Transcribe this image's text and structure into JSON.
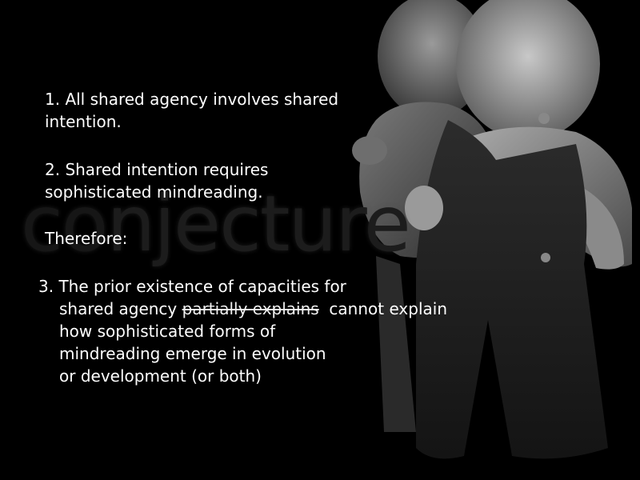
{
  "watermark": {
    "prefix": "co",
    "word": "njecture"
  },
  "points": {
    "p1": {
      "line1": "1. All shared agency involves shared",
      "line2": "intention."
    },
    "p2": {
      "line1": "2. Shared intention requires",
      "line2": "sophisticated mindreading."
    },
    "therefore": "Therefore:",
    "p3": {
      "line1": "3. The prior existence of capacities for",
      "line2_pre": "shared agency ",
      "line2_struck": "partially explains",
      "line2_post": "  cannot explain",
      "line3": "how sophisticated forms of",
      "line4": "mindreading emerge in evolution",
      "line5": "or development (or both)"
    }
  },
  "colors": {
    "background": "#000000",
    "text": "#ffffff",
    "watermark": "#1c1c1c"
  }
}
